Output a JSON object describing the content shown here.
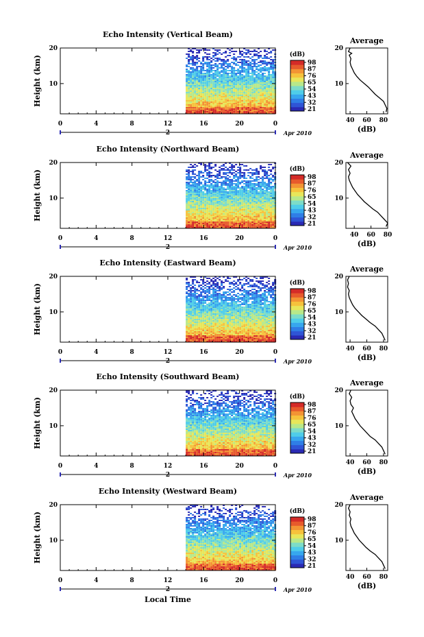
{
  "figure": {
    "bottom_xlabel": "Local Time",
    "date_label": "Apr 2010",
    "day_label": "2"
  },
  "colors": {
    "colormap": [
      "#2a2ab4",
      "#2f55d6",
      "#2f7ee6",
      "#37a7ee",
      "#4fcde9",
      "#7ddcc8",
      "#b8e88a",
      "#e8e65a",
      "#f6c23c",
      "#f39434",
      "#e75a2c",
      "#d42b28"
    ]
  },
  "chart_data": [
    {
      "type": "heatmap",
      "title": "Echo Intensity (Vertical Beam)",
      "ylabel": "Height (km)",
      "xticks": [
        "0",
        "4",
        "8",
        "12",
        "16",
        "20",
        "0"
      ],
      "yticks": [
        "20",
        "10"
      ],
      "xlim": [
        0,
        24
      ],
      "ylim": [
        1.5,
        20
      ],
      "data_start_hour": 14,
      "colorbar": {
        "label": "(dB)",
        "ticks": [
          "98",
          "87",
          "76",
          "65",
          "54",
          "43",
          "32",
          "21"
        ]
      },
      "average": {
        "title": "Average",
        "xlabel": "(dB)",
        "xticks": [
          "40",
          "60",
          "80"
        ],
        "yticks": [
          "20",
          "10"
        ],
        "xlim": [
          35,
          85
        ],
        "profile": [
          [
            83,
            2
          ],
          [
            84,
            3
          ],
          [
            82,
            4
          ],
          [
            80,
            5
          ],
          [
            75,
            6
          ],
          [
            70,
            7
          ],
          [
            66,
            8
          ],
          [
            62,
            9
          ],
          [
            57,
            10
          ],
          [
            52,
            11
          ],
          [
            48,
            12
          ],
          [
            45,
            13
          ],
          [
            43,
            14
          ],
          [
            41,
            15
          ],
          [
            40,
            16
          ],
          [
            41,
            17
          ],
          [
            39,
            18
          ],
          [
            42,
            18.5
          ],
          [
            38,
            19
          ],
          [
            40,
            20
          ]
        ]
      }
    },
    {
      "type": "heatmap",
      "title": "Echo Intensity (Northward Beam)",
      "ylabel": "Height (km)",
      "xticks": [
        "0",
        "4",
        "8",
        "12",
        "16",
        "20",
        "0"
      ],
      "yticks": [
        "20",
        "10"
      ],
      "xlim": [
        0,
        24
      ],
      "ylim": [
        1.5,
        20
      ],
      "data_start_hour": 14,
      "colorbar": {
        "label": "(dB)",
        "ticks": [
          "98",
          "87",
          "76",
          "65",
          "54",
          "43",
          "32",
          "21"
        ]
      },
      "average": {
        "title": "Average",
        "xlabel": "(dB)",
        "xticks": [
          "40",
          "60",
          "80"
        ],
        "yticks": [
          "20",
          "10"
        ],
        "xlim": [
          30,
          80
        ],
        "profile": [
          [
            78,
            2
          ],
          [
            80,
            3
          ],
          [
            76,
            4
          ],
          [
            72,
            5
          ],
          [
            68,
            6
          ],
          [
            62,
            7
          ],
          [
            57,
            8
          ],
          [
            52,
            9
          ],
          [
            48,
            10
          ],
          [
            44,
            11
          ],
          [
            41,
            12
          ],
          [
            38,
            13
          ],
          [
            36,
            14
          ],
          [
            34,
            15
          ],
          [
            33,
            16
          ],
          [
            35,
            17
          ],
          [
            33,
            18
          ],
          [
            36,
            19
          ],
          [
            32,
            20
          ]
        ]
      }
    },
    {
      "type": "heatmap",
      "title": "Echo Intensity (Eastward Beam)",
      "ylabel": "Height (km)",
      "xticks": [
        "0",
        "4",
        "8",
        "12",
        "16",
        "20",
        "0"
      ],
      "yticks": [
        "20",
        "10"
      ],
      "xlim": [
        0,
        24
      ],
      "ylim": [
        1.5,
        20
      ],
      "data_start_hour": 14,
      "colorbar": {
        "label": "(dB)",
        "ticks": [
          "98",
          "87",
          "76",
          "65",
          "54",
          "43",
          "32",
          "21"
        ]
      },
      "average": {
        "title": "Average",
        "xlabel": "(dB)",
        "xticks": [
          "40",
          "60",
          "80"
        ],
        "yticks": [
          "20",
          "10"
        ],
        "xlim": [
          35,
          85
        ],
        "profile": [
          [
            82,
            2
          ],
          [
            80,
            3
          ],
          [
            78,
            4
          ],
          [
            74,
            5
          ],
          [
            70,
            6
          ],
          [
            64,
            7
          ],
          [
            59,
            8
          ],
          [
            54,
            9
          ],
          [
            50,
            10
          ],
          [
            46,
            11
          ],
          [
            43,
            12
          ],
          [
            41,
            13
          ],
          [
            39,
            14
          ],
          [
            38,
            15
          ],
          [
            39,
            16
          ],
          [
            37,
            17
          ],
          [
            38,
            18
          ],
          [
            37,
            19
          ],
          [
            39,
            20
          ]
        ]
      }
    },
    {
      "type": "heatmap",
      "title": "Echo Intensity (Southward Beam)",
      "ylabel": "Height (km)",
      "xticks": [
        "0",
        "4",
        "8",
        "12",
        "16",
        "20",
        "0"
      ],
      "yticks": [
        "20",
        "10"
      ],
      "xlim": [
        0,
        24
      ],
      "ylim": [
        1.5,
        20
      ],
      "data_start_hour": 14,
      "colorbar": {
        "label": "(dB)",
        "ticks": [
          "98",
          "87",
          "76",
          "65",
          "54",
          "43",
          "32",
          "21"
        ]
      },
      "average": {
        "title": "Average",
        "xlabel": "(dB)",
        "xticks": [
          "40",
          "60",
          "80"
        ],
        "yticks": [
          "20",
          "10"
        ],
        "xlim": [
          35,
          85
        ],
        "profile": [
          [
            82,
            2
          ],
          [
            80,
            3
          ],
          [
            78,
            4
          ],
          [
            74,
            5
          ],
          [
            70,
            6
          ],
          [
            64,
            7
          ],
          [
            60,
            8
          ],
          [
            56,
            9
          ],
          [
            52,
            10
          ],
          [
            49,
            11
          ],
          [
            46,
            12
          ],
          [
            44,
            13
          ],
          [
            42,
            14
          ],
          [
            44,
            15
          ],
          [
            41,
            16
          ],
          [
            40,
            17
          ],
          [
            42,
            18
          ],
          [
            39,
            19
          ],
          [
            41,
            20
          ]
        ]
      }
    },
    {
      "type": "heatmap",
      "title": "Echo Intensity (Westward Beam)",
      "ylabel": "Height (km)",
      "xticks": [
        "0",
        "4",
        "8",
        "12",
        "16",
        "20",
        "0"
      ],
      "yticks": [
        "20",
        "10"
      ],
      "xlim": [
        0,
        24
      ],
      "ylim": [
        1.5,
        20
      ],
      "data_start_hour": 14,
      "colorbar": {
        "label": "(dB)",
        "ticks": [
          "98",
          "87",
          "76",
          "65",
          "54",
          "43",
          "32",
          "21"
        ]
      },
      "average": {
        "title": "Average",
        "xlabel": "(dB)",
        "xticks": [
          "40",
          "60",
          "80"
        ],
        "yticks": [
          "20",
          "10"
        ],
        "xlim": [
          35,
          85
        ],
        "profile": [
          [
            82,
            2
          ],
          [
            80,
            3
          ],
          [
            78,
            4
          ],
          [
            74,
            5
          ],
          [
            70,
            6
          ],
          [
            64,
            7
          ],
          [
            59,
            8
          ],
          [
            55,
            9
          ],
          [
            51,
            10
          ],
          [
            48,
            11
          ],
          [
            45,
            12
          ],
          [
            43,
            13
          ],
          [
            41,
            14
          ],
          [
            40,
            15
          ],
          [
            41,
            16
          ],
          [
            39,
            17
          ],
          [
            40,
            18
          ],
          [
            38,
            19
          ],
          [
            40,
            20
          ]
        ]
      }
    }
  ]
}
